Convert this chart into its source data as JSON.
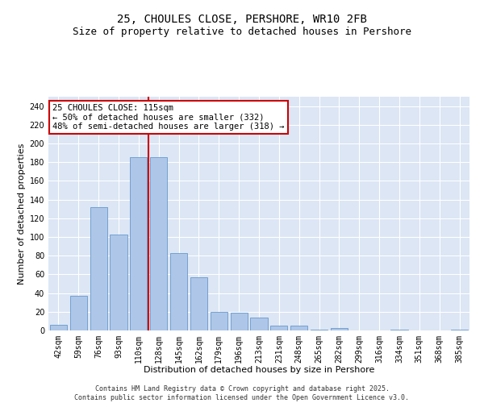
{
  "title": "25, CHOULES CLOSE, PERSHORE, WR10 2FB",
  "subtitle": "Size of property relative to detached houses in Pershore",
  "xlabel": "Distribution of detached houses by size in Pershore",
  "ylabel": "Number of detached properties",
  "categories": [
    "42sqm",
    "59sqm",
    "76sqm",
    "93sqm",
    "110sqm",
    "128sqm",
    "145sqm",
    "162sqm",
    "179sqm",
    "196sqm",
    "213sqm",
    "231sqm",
    "248sqm",
    "265sqm",
    "282sqm",
    "299sqm",
    "316sqm",
    "334sqm",
    "351sqm",
    "368sqm",
    "385sqm"
  ],
  "values": [
    6,
    37,
    132,
    103,
    185,
    185,
    83,
    57,
    20,
    19,
    14,
    5,
    5,
    1,
    3,
    0,
    0,
    1,
    0,
    0,
    1
  ],
  "bar_color": "#aec6e8",
  "bar_edge_color": "#6699cc",
  "vline_x": 4.5,
  "vline_color": "#cc0000",
  "annotation_text": "25 CHOULES CLOSE: 115sqm\n← 50% of detached houses are smaller (332)\n48% of semi-detached houses are larger (318) →",
  "annotation_box_color": "#ffffff",
  "annotation_box_edge_color": "#cc0000",
  "ylim": [
    0,
    250
  ],
  "yticks": [
    0,
    20,
    40,
    60,
    80,
    100,
    120,
    140,
    160,
    180,
    200,
    220,
    240
  ],
  "background_color": "#dce6f5",
  "footer_text": "Contains HM Land Registry data © Crown copyright and database right 2025.\nContains public sector information licensed under the Open Government Licence v3.0.",
  "title_fontsize": 10,
  "subtitle_fontsize": 9,
  "xlabel_fontsize": 8,
  "ylabel_fontsize": 8,
  "tick_fontsize": 7,
  "annotation_fontsize": 7.5,
  "footer_fontsize": 6
}
